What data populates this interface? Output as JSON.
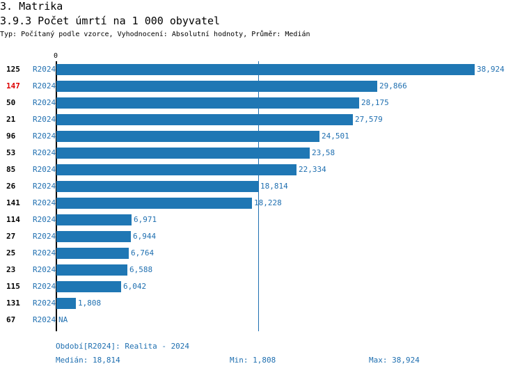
{
  "header": {
    "section": "3. Matrika",
    "title": "3.9.3 Počet úmrtí na 1 000 obyvatel",
    "subtitle": "Typ: Počítaný podle vzorce, Vyhodnocení: Absolutní hodnoty, Průměr: Medián"
  },
  "chart_data": {
    "type": "bar",
    "orientation": "horizontal",
    "title": "3.9.3 Počet úmrtí na 1 000 obyvatel",
    "axis_start_label": "0",
    "xlim": [
      0,
      38.924
    ],
    "highlight_color": "#dd0000",
    "bar_color": "#1f77b4",
    "rows": [
      {
        "rank": "125",
        "period": "R2024",
        "value": 38.924,
        "label": "38,924",
        "highlight": false
      },
      {
        "rank": "147",
        "period": "R2024",
        "value": 29.866,
        "label": "29,866",
        "highlight": true
      },
      {
        "rank": "50",
        "period": "R2024",
        "value": 28.175,
        "label": "28,175",
        "highlight": false
      },
      {
        "rank": "21",
        "period": "R2024",
        "value": 27.579,
        "label": "27,579",
        "highlight": false
      },
      {
        "rank": "96",
        "period": "R2024",
        "value": 24.501,
        "label": "24,501",
        "highlight": false
      },
      {
        "rank": "53",
        "period": "R2024",
        "value": 23.58,
        "label": "23,58",
        "highlight": false
      },
      {
        "rank": "85",
        "period": "R2024",
        "value": 22.334,
        "label": "22,334",
        "highlight": false
      },
      {
        "rank": "26",
        "period": "R2024",
        "value": 18.814,
        "label": "18,814",
        "highlight": false
      },
      {
        "rank": "141",
        "period": "R2024",
        "value": 18.228,
        "label": "18,228",
        "highlight": false
      },
      {
        "rank": "114",
        "period": "R2024",
        "value": 6.971,
        "label": "6,971",
        "highlight": false
      },
      {
        "rank": "27",
        "period": "R2024",
        "value": 6.944,
        "label": "6,944",
        "highlight": false
      },
      {
        "rank": "25",
        "period": "R2024",
        "value": 6.764,
        "label": "6,764",
        "highlight": false
      },
      {
        "rank": "23",
        "period": "R2024",
        "value": 6.588,
        "label": "6,588",
        "highlight": false
      },
      {
        "rank": "115",
        "period": "R2024",
        "value": 6.042,
        "label": "6,042",
        "highlight": false
      },
      {
        "rank": "131",
        "period": "R2024",
        "value": 1.808,
        "label": "1,808",
        "highlight": false
      },
      {
        "rank": "67",
        "period": "R2024",
        "value": null,
        "label": "NA",
        "highlight": false
      }
    ],
    "median_value": 18.814
  },
  "footer": {
    "period": "Období[R2024]: Realita - 2024",
    "median": "Medián: 18,814",
    "min": "Min: 1,808",
    "max": "Max: 38,924"
  }
}
